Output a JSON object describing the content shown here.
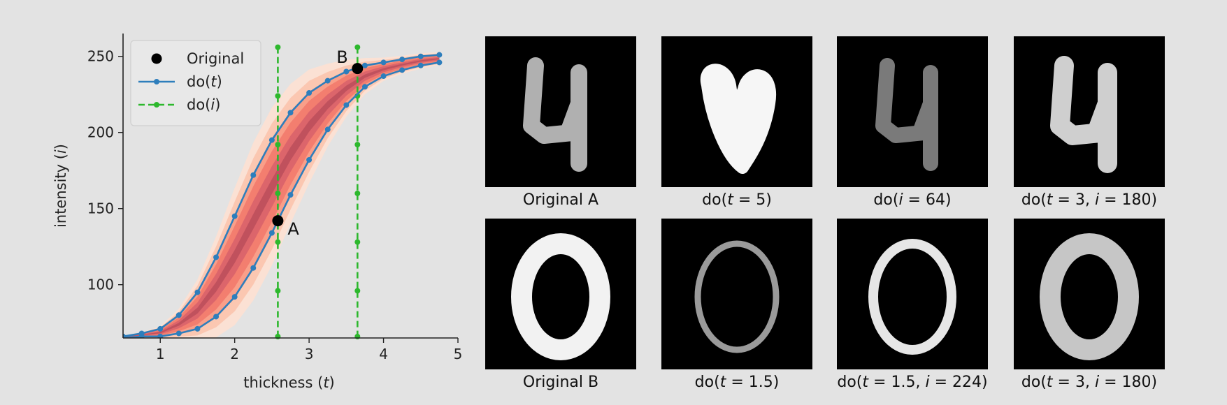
{
  "chart_data": {
    "type": "line",
    "xlabel_parts": [
      "thickness (",
      "t",
      ")"
    ],
    "ylabel_parts": [
      "intensity (",
      "i",
      ")"
    ],
    "xlim": [
      0.5,
      5.0
    ],
    "ylim": [
      65,
      265
    ],
    "x_ticks": [
      1,
      2,
      3,
      4,
      5
    ],
    "y_ticks": [
      100,
      150,
      200,
      250
    ],
    "legend_placement": "top-left",
    "legend": [
      {
        "label_parts": [
          "Original"
        ],
        "marker": "dot"
      },
      {
        "label_parts": [
          "do(",
          "t",
          ")"
        ],
        "marker": "line-dot"
      },
      {
        "label_parts": [
          "do(",
          "i",
          ")"
        ],
        "marker": "dash-dot"
      }
    ],
    "series": [
      {
        "kind": "do(t)",
        "color": "#2e7ebc",
        "x": [
          0.5,
          0.75,
          1.0,
          1.25,
          1.5,
          1.75,
          2.0,
          2.25,
          2.5,
          2.75,
          3.0,
          3.25,
          3.5,
          3.75,
          4.0,
          4.25,
          4.5,
          4.75
        ],
        "y": [
          66,
          68,
          71,
          80,
          95,
          118,
          145,
          172,
          195,
          213,
          226,
          234,
          240,
          244,
          246,
          248,
          250,
          251
        ]
      },
      {
        "kind": "do(t)",
        "color": "#2e7ebc",
        "x": [
          0.5,
          0.75,
          1.0,
          1.25,
          1.5,
          1.75,
          2.0,
          2.25,
          2.5,
          2.75,
          3.0,
          3.25,
          3.5,
          3.75,
          4.0,
          4.25,
          4.5,
          4.75
        ],
        "y": [
          65,
          66,
          66,
          68,
          71,
          79,
          92,
          111,
          134,
          159,
          182,
          202,
          218,
          230,
          237,
          241,
          244,
          246
        ]
      },
      {
        "kind": "do(i)",
        "color": "#2db82d",
        "x_const": 2.58,
        "y": [
          96,
          128,
          160,
          192,
          224,
          256
        ]
      },
      {
        "kind": "do(i)",
        "color": "#2db82d",
        "x_const": 3.65,
        "y": [
          96,
          128,
          160,
          192,
          224,
          256
        ]
      }
    ],
    "points": [
      {
        "label": "A",
        "x": 2.58,
        "y": 142
      },
      {
        "label": "B",
        "x": 3.65,
        "y": 242
      }
    ],
    "density_colors": [
      "#fde0d2",
      "#fbc4ad",
      "#f89a85",
      "#f27a6d",
      "#d9636a",
      "#bc4f5c"
    ]
  },
  "panels": [
    {
      "digit": "four",
      "caption_parts": [
        "Original A"
      ],
      "style": {
        "fill": "#b0b0b0",
        "stroke": 24
      }
    },
    {
      "digit": "heart",
      "caption_parts": [
        "do(",
        "t",
        " = 5)"
      ],
      "style": {
        "fill": "#f6f6f6",
        "stroke": 40
      }
    },
    {
      "digit": "four",
      "caption_parts": [
        "do(",
        "i",
        " = 64)"
      ],
      "style": {
        "fill": "#7a7a7a",
        "stroke": 22
      }
    },
    {
      "digit": "four",
      "caption_parts": [
        "do(",
        "t",
        " = 3, ",
        "i",
        " = 180)"
      ],
      "style": {
        "fill": "#cfcfcf",
        "stroke": 28
      }
    },
    {
      "digit": "zero",
      "caption_parts": [
        "Original B"
      ],
      "style": {
        "fill": "#f2f2f2",
        "stroke": 30
      }
    },
    {
      "digit": "zero",
      "caption_parts": [
        "do(",
        "t",
        " = 1.5)"
      ],
      "style": {
        "fill": "#9a9a9a",
        "stroke": 9
      }
    },
    {
      "digit": "zero",
      "caption_parts": [
        "do(",
        "t",
        " = 1.5, ",
        "i",
        " = 224)"
      ],
      "style": {
        "fill": "#e6e6e6",
        "stroke": 14
      }
    },
    {
      "digit": "zero",
      "caption_parts": [
        "do(",
        "t",
        " = 3, ",
        "i",
        " = 180)"
      ],
      "style": {
        "fill": "#c6c6c6",
        "stroke": 30
      }
    }
  ]
}
